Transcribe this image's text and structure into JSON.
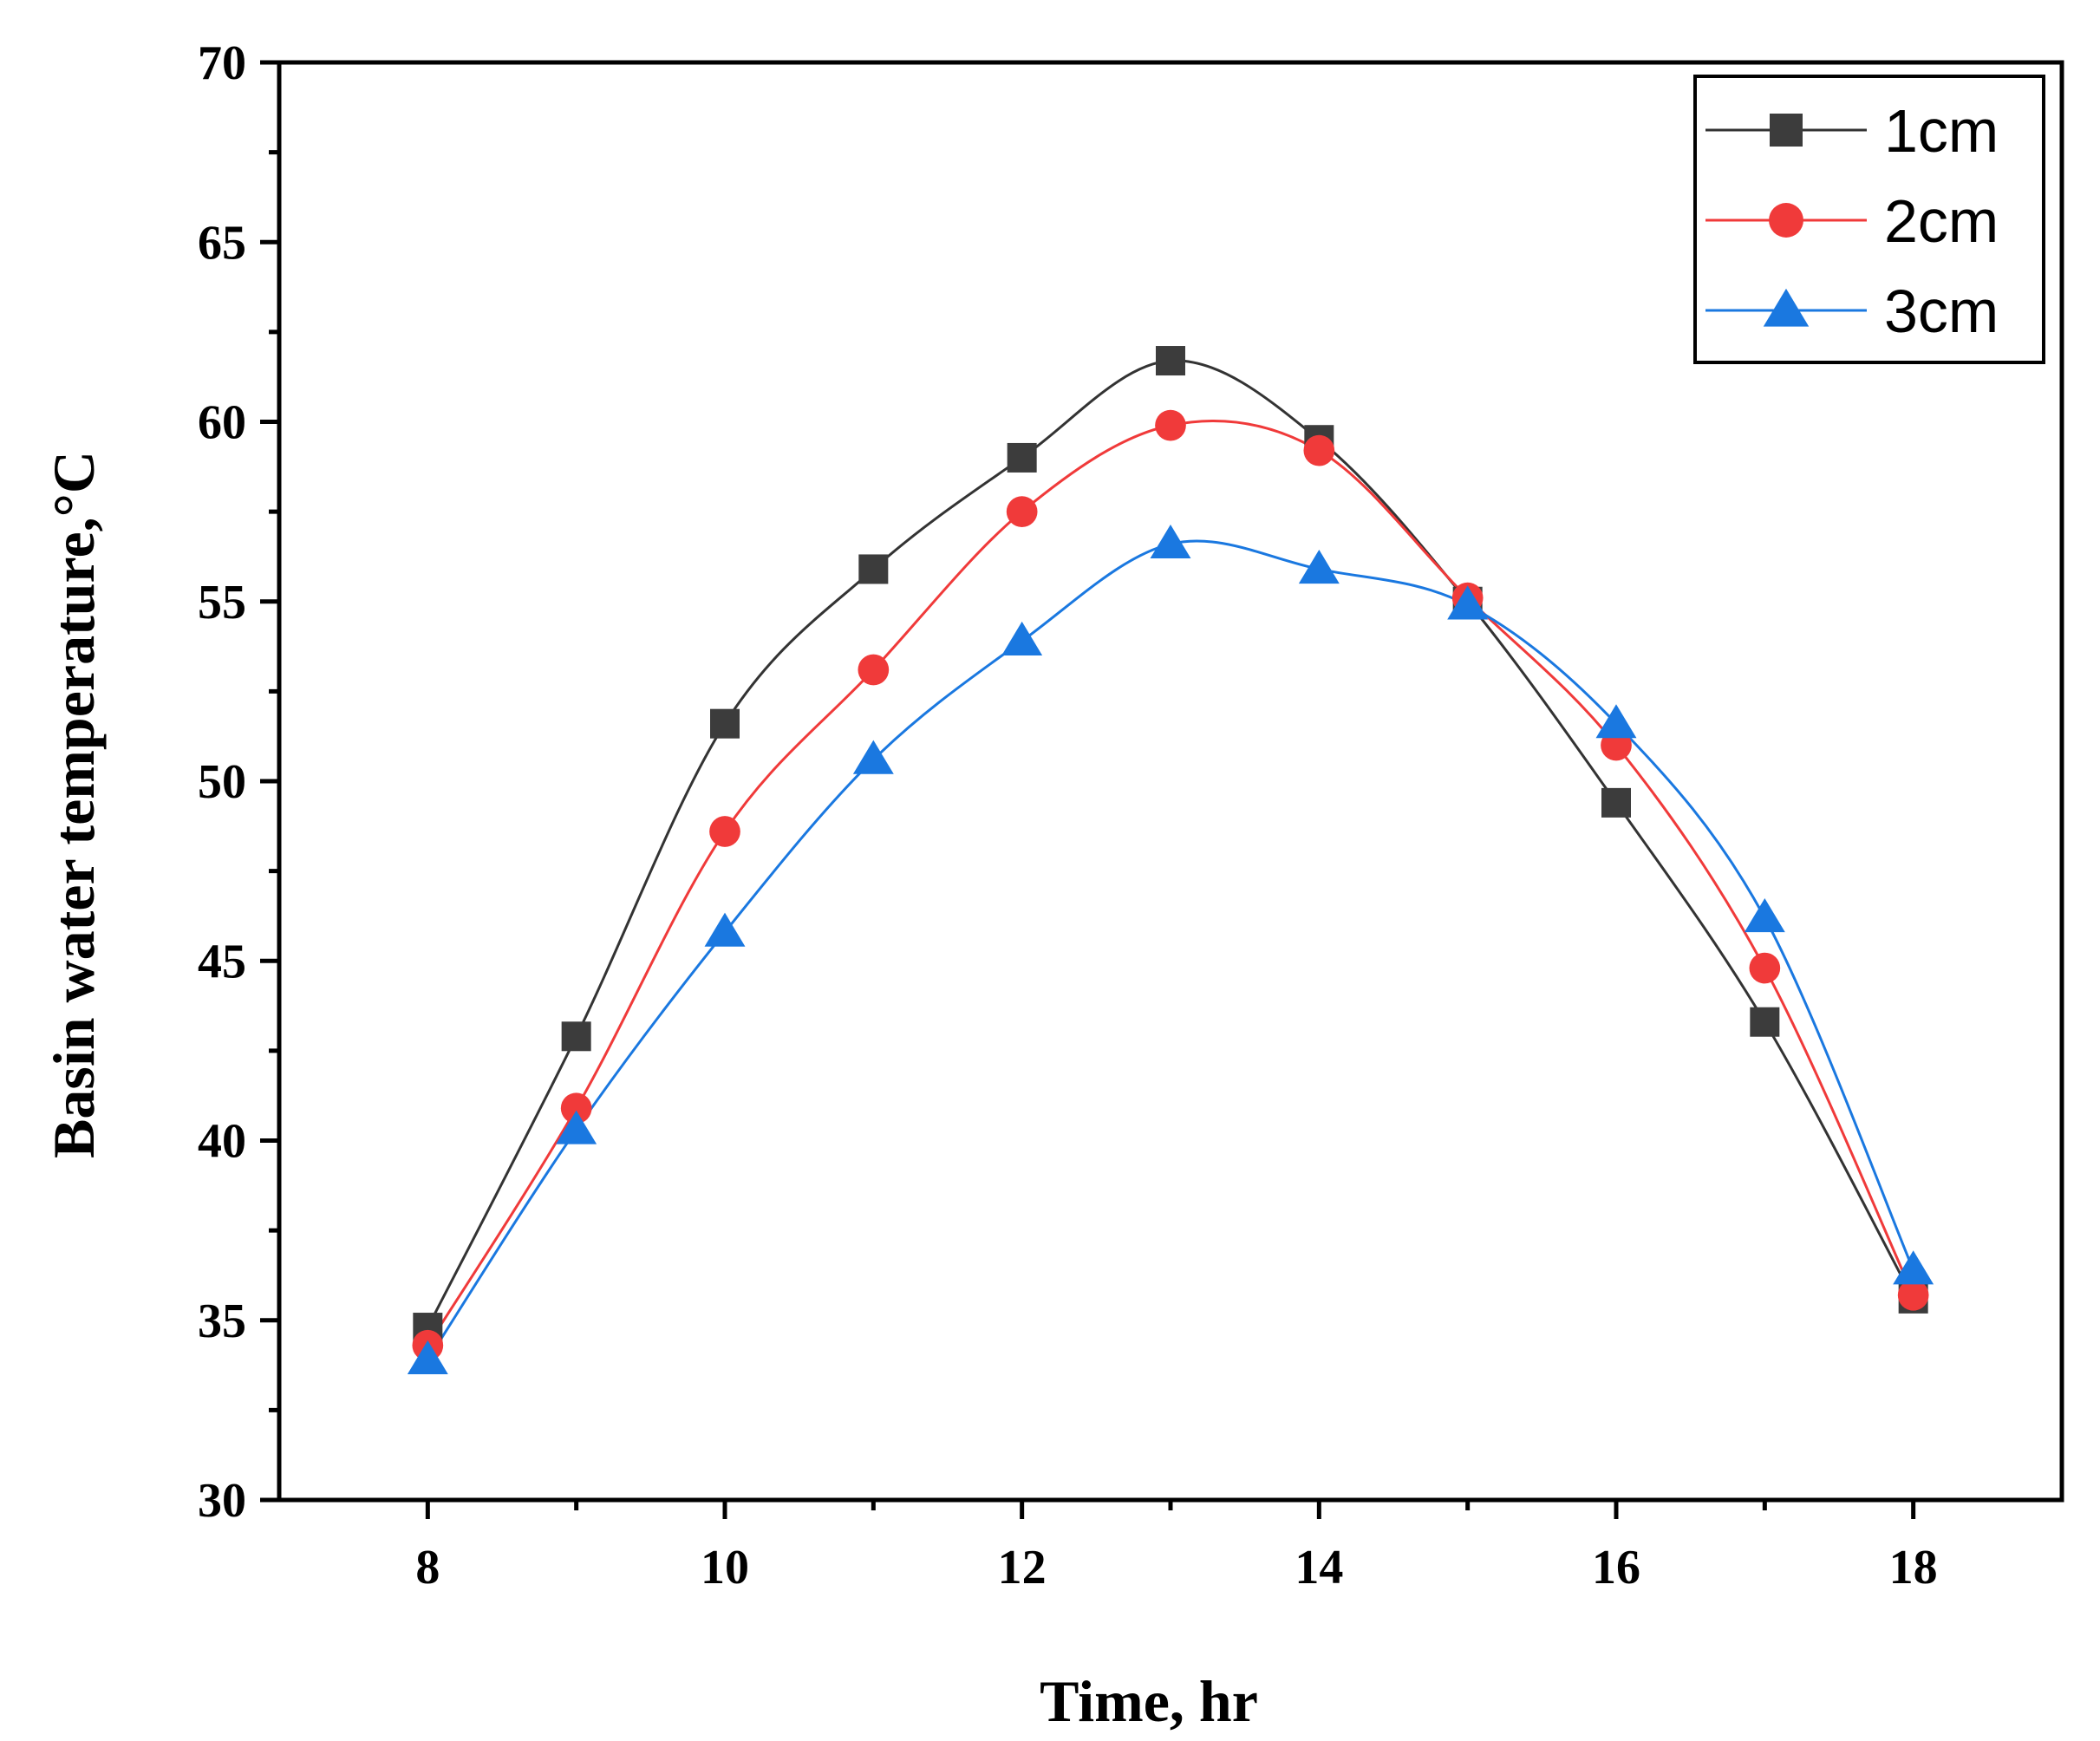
{
  "chart_data": {
    "type": "line",
    "title": "",
    "xlabel": "Time, hr",
    "ylabel": "Basin water temperature,°C",
    "xlim": [
      7,
      19
    ],
    "ylim": [
      30,
      70
    ],
    "xticks": [
      8,
      10,
      12,
      14,
      16,
      18
    ],
    "yticks": [
      30,
      35,
      40,
      45,
      50,
      55,
      60,
      65,
      70
    ],
    "x": [
      8,
      9,
      10,
      11,
      12,
      13,
      14,
      15,
      16,
      17,
      18
    ],
    "legend_position": "top-right",
    "grid": false,
    "series": [
      {
        "name": "1cm",
        "marker": "square",
        "color": "#3c3c3c",
        "line_color": "#333333",
        "values": [
          34.8,
          42.9,
          51.6,
          55.9,
          59.0,
          61.7,
          59.5,
          55.0,
          49.4,
          43.3,
          35.6
        ]
      },
      {
        "name": "2cm",
        "marker": "circle",
        "color": "#f03a3a",
        "line_color": "#f03a3a",
        "values": [
          34.3,
          40.9,
          48.6,
          53.1,
          57.5,
          59.9,
          59.2,
          55.1,
          51.0,
          44.8,
          35.7
        ]
      },
      {
        "name": "3cm",
        "marker": "triangle",
        "color": "#1a78e0",
        "line_color": "#1a78e0",
        "values": [
          33.9,
          40.3,
          45.8,
          50.6,
          53.9,
          56.6,
          55.9,
          54.9,
          51.6,
          46.2,
          36.4
        ]
      }
    ]
  }
}
